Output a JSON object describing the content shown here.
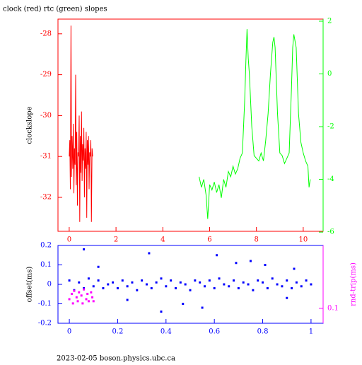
{
  "chart_data": [
    {
      "type": "line",
      "title": "clock (red) rtc (green) slopes",
      "ylabel": "clockslope",
      "axis_color": "#ff0000",
      "y2_color": "#00ff00",
      "xlim": [
        -0.48,
        10.85
      ],
      "xticks": [
        0,
        2,
        4,
        6,
        8,
        10
      ],
      "ylim": [
        -32.83,
        -27.64
      ],
      "yticks": [
        -28,
        -29,
        -30,
        -31,
        -32
      ],
      "y2lim": [
        -5.97,
        2.08
      ],
      "y2ticks": [
        2,
        0,
        -2,
        -4,
        -6
      ],
      "series": [
        {
          "color": "#ff0000",
          "x": [
            0,
            0.025,
            0.05,
            0.075,
            0.1,
            0.125,
            0.15,
            0.175,
            0.2,
            0.225,
            0.25,
            0.275,
            0.3,
            0.325,
            0.35,
            0.375,
            0.4,
            0.425,
            0.45,
            0.475,
            0.5,
            0.525,
            0.55,
            0.575,
            0.6,
            0.625,
            0.65,
            0.675,
            0.7,
            0.725,
            0.75,
            0.775,
            0.8,
            0.825,
            0.85,
            0.875,
            0.9,
            0.925,
            0.95,
            0.975,
            1.0
          ],
          "values": [
            -31.0,
            -30.6,
            -31.8,
            -27.8,
            -31.5,
            -30.5,
            -31.3,
            -30.2,
            -31.9,
            -30.8,
            -31.2,
            -29.0,
            -31.7,
            -30.4,
            -32.2,
            -30.9,
            -31.0,
            -30.0,
            -32.6,
            -30.5,
            -31.4,
            -29.9,
            -31.6,
            -30.7,
            -31.1,
            -30.3,
            -32.0,
            -30.8,
            -31.3,
            -30.4,
            -32.5,
            -30.6,
            -31.2,
            -30.5,
            -31.8,
            -30.9,
            -31.0,
            -30.6,
            -32.6,
            -30.8,
            -31.0
          ]
        },
        {
          "color": "#00ff00",
          "axis": "y2",
          "x": [
            5.55,
            5.65,
            5.75,
            5.85,
            5.92,
            6.0,
            6.1,
            6.2,
            6.3,
            6.4,
            6.5,
            6.6,
            6.7,
            6.8,
            6.9,
            7.0,
            7.1,
            7.2,
            7.3,
            7.4,
            7.5,
            7.55,
            7.6,
            7.65,
            7.7,
            7.8,
            7.9,
            8.0,
            8.1,
            8.2,
            8.3,
            8.4,
            8.5,
            8.6,
            8.7,
            8.75,
            8.8,
            8.9,
            9.0,
            9.1,
            9.2,
            9.3,
            9.4,
            9.5,
            9.55,
            9.6,
            9.7,
            9.8,
            9.9,
            10.0,
            10.1,
            10.2,
            10.25,
            10.3
          ],
          "values": [
            -3.9,
            -4.3,
            -4.0,
            -4.6,
            -5.5,
            -4.2,
            -4.4,
            -4.1,
            -4.5,
            -4.2,
            -4.7,
            -4.0,
            -4.3,
            -3.7,
            -3.9,
            -3.5,
            -3.8,
            -3.6,
            -3.2,
            -3.0,
            -1.0,
            0.5,
            1.7,
            0.6,
            0.0,
            -2.0,
            -3.1,
            -3.2,
            -3.3,
            -3.0,
            -3.3,
            -2.5,
            -1.5,
            0.0,
            1.2,
            1.4,
            1.0,
            -1.5,
            -3.0,
            -3.1,
            -3.4,
            -3.2,
            -3.0,
            -0.5,
            1.0,
            1.5,
            1.0,
            -1.5,
            -2.6,
            -3.0,
            -3.3,
            -3.5,
            -4.3,
            -4.0
          ]
        }
      ]
    },
    {
      "type": "scatter",
      "ylabel": "offset(ms)",
      "y2label": "rnd-trip(ms)",
      "axis_color": "#0000ff",
      "y2_color": "#ff00ff",
      "y2log": true,
      "xlim": [
        -0.047,
        1.05
      ],
      "xticks": [
        0,
        0.2,
        0.4,
        0.6,
        0.8,
        1
      ],
      "ylim": [
        -0.2,
        0.2
      ],
      "yticks": [
        0.2,
        0.1,
        0,
        -0.1,
        -0.2
      ],
      "y2lim": [
        0.058,
        1
      ],
      "y2ticks": [
        0.1
      ],
      "series": [
        {
          "color": "#0000ff",
          "x": [
            0.0,
            0.02,
            0.04,
            0.06,
            0.08,
            0.1,
            0.12,
            0.14,
            0.16,
            0.18,
            0.2,
            0.22,
            0.24,
            0.26,
            0.28,
            0.3,
            0.32,
            0.34,
            0.36,
            0.38,
            0.4,
            0.42,
            0.44,
            0.46,
            0.48,
            0.5,
            0.52,
            0.54,
            0.56,
            0.58,
            0.6,
            0.62,
            0.64,
            0.66,
            0.68,
            0.7,
            0.72,
            0.74,
            0.76,
            0.78,
            0.8,
            0.82,
            0.84,
            0.86,
            0.88,
            0.9,
            0.92,
            0.94,
            0.96,
            0.98,
            1.0,
            0.33,
            0.47,
            0.61,
            0.81,
            0.06,
            0.24,
            0.75,
            0.9,
            0.55,
            0.12,
            0.38,
            0.69,
            0.93
          ],
          "values": [
            0.02,
            -0.03,
            0.01,
            -0.02,
            0.03,
            -0.01,
            0.02,
            -0.02,
            0.0,
            0.01,
            -0.02,
            0.02,
            -0.01,
            0.01,
            -0.03,
            0.02,
            0.0,
            -0.02,
            0.01,
            0.03,
            -0.01,
            0.02,
            -0.02,
            0.01,
            0.0,
            -0.03,
            0.02,
            0.01,
            -0.01,
            0.02,
            -0.02,
            0.03,
            0.0,
            -0.01,
            0.02,
            -0.02,
            0.01,
            0.0,
            -0.03,
            0.02,
            0.01,
            -0.02,
            0.03,
            0.0,
            -0.01,
            0.02,
            -0.02,
            0.01,
            -0.01,
            0.02,
            0.0,
            0.16,
            -0.1,
            0.15,
            0.1,
            0.18,
            -0.08,
            0.12,
            -0.07,
            -0.12,
            0.09,
            -0.14,
            0.11,
            0.08
          ]
        },
        {
          "color": "#ff00ff",
          "axis": "y2",
          "x": [
            0.0,
            0.01,
            0.015,
            0.02,
            0.03,
            0.035,
            0.04,
            0.05,
            0.055,
            0.06,
            0.07,
            0.075,
            0.08,
            0.09,
            0.095,
            0.1
          ],
          "values": [
            0.14,
            0.17,
            0.12,
            0.19,
            0.15,
            0.13,
            0.18,
            0.16,
            0.12,
            0.2,
            0.14,
            0.17,
            0.13,
            0.18,
            0.15,
            0.13
          ]
        }
      ]
    }
  ],
  "footer": "2023-02-05  boson.physics.ubc.ca"
}
